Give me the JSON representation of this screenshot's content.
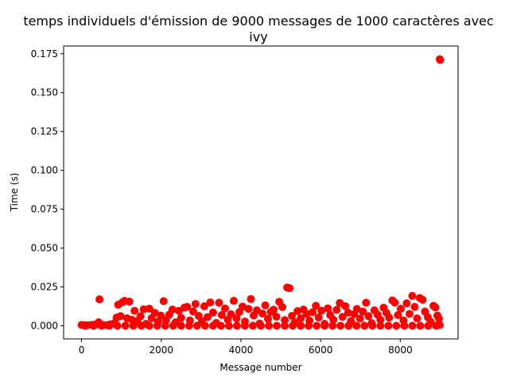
{
  "chart_data": {
    "type": "scatter",
    "title_line1": "temps individuels d'émission de 9000 messages de 1000 caractères avec",
    "title_line2": "ivy",
    "xlabel": "Message number",
    "ylabel": "Time (s)",
    "xlim": [
      -450,
      9450
    ],
    "ylim": [
      -0.0085,
      0.18
    ],
    "x_ticks": [
      0,
      2000,
      4000,
      6000,
      8000
    ],
    "x_tick_labels": [
      "0",
      "2000",
      "4000",
      "6000",
      "8000"
    ],
    "y_ticks": [
      0.0,
      0.025,
      0.05,
      0.075,
      0.1,
      0.125,
      0.15,
      0.175
    ],
    "y_tick_labels": [
      "0.000",
      "0.025",
      "0.050",
      "0.075",
      "0.100",
      "0.125",
      "0.150",
      "0.175"
    ],
    "grid": false,
    "marker_color": "#ff0000",
    "series": [
      {
        "values": [
          [
            0,
            0.0005
          ],
          [
            60,
            0.0003
          ],
          [
            150,
            0.0004
          ],
          [
            260,
            0.0006
          ],
          [
            350,
            0.0008
          ],
          [
            430,
            0.0022
          ],
          [
            450,
            0.017
          ],
          [
            520,
            0.0006
          ],
          [
            620,
            0.0004
          ],
          [
            720,
            0.0009
          ],
          [
            820,
            0.0016
          ],
          [
            880,
            0.0052
          ],
          [
            920,
            0.0135
          ],
          [
            980,
            0.0062
          ],
          [
            1020,
            0.015
          ],
          [
            1080,
            0.016
          ],
          [
            1140,
            0.0048
          ],
          [
            1200,
            0.0155
          ],
          [
            1260,
            0.0038
          ],
          [
            1330,
            0.0096
          ],
          [
            1400,
            0.0031
          ],
          [
            1480,
            0.0061
          ],
          [
            1560,
            0.0106
          ],
          [
            1620,
            0.0012
          ],
          [
            1700,
            0.011
          ],
          [
            1760,
            0.0049
          ],
          [
            1840,
            0.0083
          ],
          [
            1920,
            0.0026
          ],
          [
            1990,
            0.0065
          ],
          [
            2060,
            0.0158
          ],
          [
            2120,
            0.0035
          ],
          [
            2200,
            0.0071
          ],
          [
            2280,
            0.0104
          ],
          [
            2360,
            0.0022
          ],
          [
            2440,
            0.0096
          ],
          [
            2500,
            0.0051
          ],
          [
            2580,
            0.0116
          ],
          [
            2650,
            0.0122
          ],
          [
            2720,
            0.0034
          ],
          [
            2800,
            0.0092
          ],
          [
            2860,
            0.014
          ],
          [
            2940,
            0.0063
          ],
          [
            3020,
            0.0028
          ],
          [
            3080,
            0.0125
          ],
          [
            3160,
            0.0055
          ],
          [
            3230,
            0.015
          ],
          [
            3300,
            0.0085
          ],
          [
            3380,
            0.0018
          ],
          [
            3450,
            0.0148
          ],
          [
            3520,
            0.0069
          ],
          [
            3600,
            0.0111
          ],
          [
            3670,
            0.0039
          ],
          [
            3750,
            0.0074
          ],
          [
            3820,
            0.016
          ],
          [
            3890,
            0.0047
          ],
          [
            3960,
            0.0088
          ],
          [
            4040,
            0.0123
          ],
          [
            4100,
            0.0027
          ],
          [
            4190,
            0.0108
          ],
          [
            4250,
            0.0172
          ],
          [
            4320,
            0.0066
          ],
          [
            4400,
            0.0099
          ],
          [
            4470,
            0.0014
          ],
          [
            4540,
            0.0078
          ],
          [
            4610,
            0.0131
          ],
          [
            4680,
            0.0044
          ],
          [
            4750,
            0.0089
          ],
          [
            4820,
            0.0103
          ],
          [
            4890,
            0.0058
          ],
          [
            4960,
            0.0154
          ],
          [
            5040,
            0.012
          ],
          [
            5100,
            0.0036
          ],
          [
            5160,
            0.0246
          ],
          [
            5220,
            0.0242
          ],
          [
            5280,
            0.0063
          ],
          [
            5350,
            0.0021
          ],
          [
            5420,
            0.0094
          ],
          [
            5500,
            0.0048
          ],
          [
            5570,
            0.0104
          ],
          [
            5650,
            0.0076
          ],
          [
            5720,
            0.0033
          ],
          [
            5800,
            0.0087
          ],
          [
            5880,
            0.0128
          ],
          [
            5950,
            0.0053
          ],
          [
            6020,
            0.0097
          ],
          [
            6100,
            0.0012
          ],
          [
            6180,
            0.0112
          ],
          [
            6240,
            0.0069
          ],
          [
            6320,
            0.0039
          ],
          [
            6400,
            0.0102
          ],
          [
            6480,
            0.0146
          ],
          [
            6550,
            0.0057
          ],
          [
            6620,
            0.0126
          ],
          [
            6690,
            0.0084
          ],
          [
            6760,
            0.0029
          ],
          [
            6840,
            0.0074
          ],
          [
            6910,
            0.0108
          ],
          [
            6990,
            0.0046
          ],
          [
            7060,
            0.0091
          ],
          [
            7140,
            0.0148
          ],
          [
            7200,
            0.0062
          ],
          [
            7280,
            0.0017
          ],
          [
            7350,
            0.0099
          ],
          [
            7430,
            0.0071
          ],
          [
            7500,
            0.0038
          ],
          [
            7580,
            0.0116
          ],
          [
            7650,
            0.0083
          ],
          [
            7720,
            0.0052
          ],
          [
            7800,
            0.0163
          ],
          [
            7860,
            0.0149
          ],
          [
            7940,
            0.0068
          ],
          [
            8010,
            0.0109
          ],
          [
            8080,
            0.0034
          ],
          [
            8160,
            0.0144
          ],
          [
            8230,
            0.0076
          ],
          [
            8300,
            0.0192
          ],
          [
            8360,
            0.0121
          ],
          [
            8420,
            0.0047
          ],
          [
            8490,
            0.0178
          ],
          [
            8560,
            0.0167
          ],
          [
            8620,
            0.0091
          ],
          [
            8690,
            0.0055
          ],
          [
            8760,
            0.0026
          ],
          [
            8830,
            0.0128
          ],
          [
            8880,
            0.0118
          ],
          [
            8930,
            0.0066
          ],
          [
            8970,
            0.0045
          ],
          [
            8990,
            0.0005
          ],
          [
            8990,
            0.1715
          ],
          [
            9000,
            0.171
          ],
          [
            100,
            0.0
          ],
          [
            300,
            0.0
          ],
          [
            500,
            0.0
          ],
          [
            700,
            0.0
          ],
          [
            900,
            0.0
          ],
          [
            1100,
            0.0
          ],
          [
            1300,
            0.0
          ],
          [
            1500,
            0.0
          ],
          [
            1700,
            0.0
          ],
          [
            1900,
            0.0
          ],
          [
            2100,
            0.0
          ],
          [
            2300,
            0.0
          ],
          [
            2500,
            0.0
          ],
          [
            2700,
            0.0
          ],
          [
            2900,
            0.0
          ],
          [
            3100,
            0.0
          ],
          [
            3300,
            0.0
          ],
          [
            3500,
            0.0
          ],
          [
            3700,
            0.0
          ],
          [
            3900,
            0.0
          ],
          [
            4100,
            0.0
          ],
          [
            4300,
            0.0
          ],
          [
            4500,
            0.0
          ],
          [
            4700,
            0.0
          ],
          [
            4900,
            0.0
          ],
          [
            5100,
            0.0
          ],
          [
            5300,
            0.0
          ],
          [
            5500,
            0.0
          ],
          [
            5700,
            0.0
          ],
          [
            5900,
            0.0
          ],
          [
            6100,
            0.0
          ],
          [
            6300,
            0.0
          ],
          [
            6500,
            0.0
          ],
          [
            6700,
            0.0
          ],
          [
            6900,
            0.0
          ],
          [
            7100,
            0.0
          ],
          [
            7300,
            0.0
          ],
          [
            7500,
            0.0
          ],
          [
            7700,
            0.0
          ],
          [
            7900,
            0.0
          ],
          [
            8100,
            0.0
          ],
          [
            8300,
            0.0
          ],
          [
            8500,
            0.0
          ],
          [
            8700,
            0.0
          ],
          [
            8900,
            0.0
          ]
        ]
      }
    ]
  }
}
